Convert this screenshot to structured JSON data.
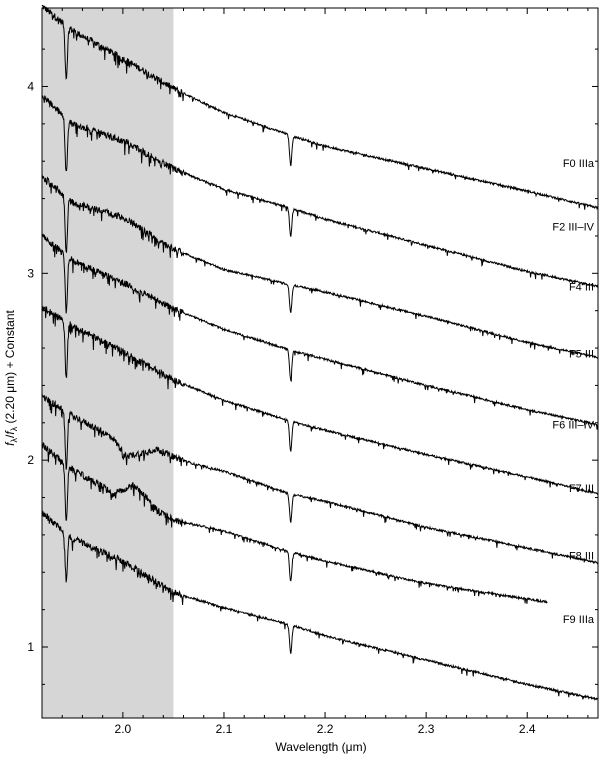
{
  "chart_data": {
    "type": "line",
    "title": "",
    "xlabel": "Wavelength (μm)",
    "ylabel_parts": {
      "f1": "f",
      "sub1": "λ",
      "slash": "/",
      "f2": "f",
      "sub2": "λ",
      "rest": " (2.20 μm) + Constant"
    },
    "xlim": [
      1.92,
      2.47
    ],
    "ylim": [
      0.62,
      4.42
    ],
    "xticks": [
      {
        "value": 2.0,
        "label": "2.0"
      },
      {
        "value": 2.1,
        "label": "2.1"
      },
      {
        "value": 2.2,
        "label": "2.2"
      },
      {
        "value": 2.3,
        "label": "2.3"
      },
      {
        "value": 2.4,
        "label": "2.4"
      }
    ],
    "yticks": [
      {
        "value": 1,
        "label": "1"
      },
      {
        "value": 2,
        "label": "2"
      },
      {
        "value": 3,
        "label": "3"
      },
      {
        "value": 4,
        "label": "4"
      }
    ],
    "shaded_region": {
      "x0": 1.92,
      "x1": 2.05,
      "color": "#d6d6d6"
    },
    "grid": false,
    "legend": "none",
    "series": [
      {
        "name": "F0 IIIa",
        "label_y": 3.59,
        "points": [
          [
            1.92,
            4.43
          ],
          [
            1.95,
            4.3
          ],
          [
            2.0,
            4.15
          ],
          [
            2.05,
            3.99
          ],
          [
            2.1,
            3.86
          ],
          [
            2.165,
            3.74
          ],
          [
            2.2,
            3.68
          ],
          [
            2.3,
            3.56
          ],
          [
            2.4,
            3.44
          ],
          [
            2.47,
            3.35
          ]
        ],
        "dips": [
          [
            1.944,
            0.28
          ],
          [
            2.166,
            0.16
          ]
        ]
      },
      {
        "name": "F2 III–IV",
        "label_y": 3.25,
        "points": [
          [
            1.92,
            3.95
          ],
          [
            1.95,
            3.8
          ],
          [
            2.0,
            3.71
          ],
          [
            2.05,
            3.56
          ],
          [
            2.1,
            3.45
          ],
          [
            2.165,
            3.35
          ],
          [
            2.2,
            3.29
          ],
          [
            2.3,
            3.15
          ],
          [
            2.4,
            3.01
          ],
          [
            2.47,
            2.93
          ]
        ],
        "dips": [
          [
            1.944,
            0.3
          ],
          [
            2.166,
            0.15
          ]
        ]
      },
      {
        "name": "F4 III",
        "label_y": 2.93,
        "points": [
          [
            1.92,
            3.52
          ],
          [
            1.95,
            3.38
          ],
          [
            2.0,
            3.3
          ],
          [
            2.05,
            3.13
          ],
          [
            2.1,
            3.02
          ],
          [
            2.165,
            2.94
          ],
          [
            2.2,
            2.9
          ],
          [
            2.3,
            2.77
          ],
          [
            2.4,
            2.63
          ],
          [
            2.47,
            2.55
          ]
        ],
        "dips": [
          [
            1.944,
            0.3
          ],
          [
            2.166,
            0.15
          ]
        ]
      },
      {
        "name": "F5 III",
        "label_y": 2.57,
        "points": [
          [
            1.92,
            3.2
          ],
          [
            1.95,
            3.07
          ],
          [
            2.0,
            2.95
          ],
          [
            2.05,
            2.81
          ],
          [
            2.1,
            2.7
          ],
          [
            2.165,
            2.59
          ],
          [
            2.2,
            2.54
          ],
          [
            2.3,
            2.4
          ],
          [
            2.4,
            2.27
          ],
          [
            2.47,
            2.19
          ]
        ],
        "dips": [
          [
            1.944,
            0.3
          ],
          [
            2.166,
            0.16
          ]
        ]
      },
      {
        "name": "F6 III–IV",
        "label_y": 2.19,
        "points": [
          [
            1.92,
            2.82
          ],
          [
            1.95,
            2.72
          ],
          [
            2.0,
            2.58
          ],
          [
            2.05,
            2.43
          ],
          [
            2.1,
            2.32
          ],
          [
            2.165,
            2.21
          ],
          [
            2.2,
            2.16
          ],
          [
            2.3,
            2.03
          ],
          [
            2.4,
            1.91
          ],
          [
            2.47,
            1.82
          ]
        ],
        "dips": [
          [
            1.944,
            0.3
          ],
          [
            2.166,
            0.16
          ]
        ]
      },
      {
        "name": "F7 III",
        "label_y": 1.85,
        "points": [
          [
            1.92,
            2.34
          ],
          [
            1.95,
            2.24
          ],
          [
            1.99,
            2.12
          ],
          [
            2.003,
            2.02
          ],
          [
            2.02,
            2.04
          ],
          [
            2.033,
            2.06
          ],
          [
            2.045,
            2.03
          ],
          [
            2.07,
            1.98
          ],
          [
            2.1,
            1.94
          ],
          [
            2.165,
            1.82
          ],
          [
            2.2,
            1.78
          ],
          [
            2.3,
            1.64
          ],
          [
            2.4,
            1.53
          ],
          [
            2.47,
            1.45
          ]
        ],
        "dips": [
          [
            1.944,
            0.3
          ],
          [
            2.166,
            0.15
          ]
        ]
      },
      {
        "name": "F8 III",
        "label_y": 1.49,
        "points": [
          [
            1.92,
            2.08
          ],
          [
            1.95,
            1.95
          ],
          [
            1.98,
            1.86
          ],
          [
            1.99,
            1.82
          ],
          [
            2.0,
            1.84
          ],
          [
            2.01,
            1.87
          ],
          [
            2.02,
            1.82
          ],
          [
            2.035,
            1.73
          ],
          [
            2.05,
            1.68
          ],
          [
            2.1,
            1.62
          ],
          [
            2.165,
            1.51
          ],
          [
            2.2,
            1.46
          ],
          [
            2.3,
            1.34
          ],
          [
            2.42,
            1.24
          ]
        ],
        "dips": [
          [
            1.944,
            0.3
          ],
          [
            2.166,
            0.16
          ]
        ]
      },
      {
        "name": "F9 IIIa",
        "label_y": 1.15,
        "points": [
          [
            1.92,
            1.72
          ],
          [
            1.95,
            1.58
          ],
          [
            2.0,
            1.46
          ],
          [
            2.05,
            1.29
          ],
          [
            2.1,
            1.21
          ],
          [
            2.165,
            1.12
          ],
          [
            2.2,
            1.06
          ],
          [
            2.3,
            0.93
          ],
          [
            2.4,
            0.8
          ],
          [
            2.47,
            0.72
          ]
        ],
        "dips": [
          [
            1.944,
            0.25
          ],
          [
            2.166,
            0.15
          ]
        ]
      }
    ]
  }
}
